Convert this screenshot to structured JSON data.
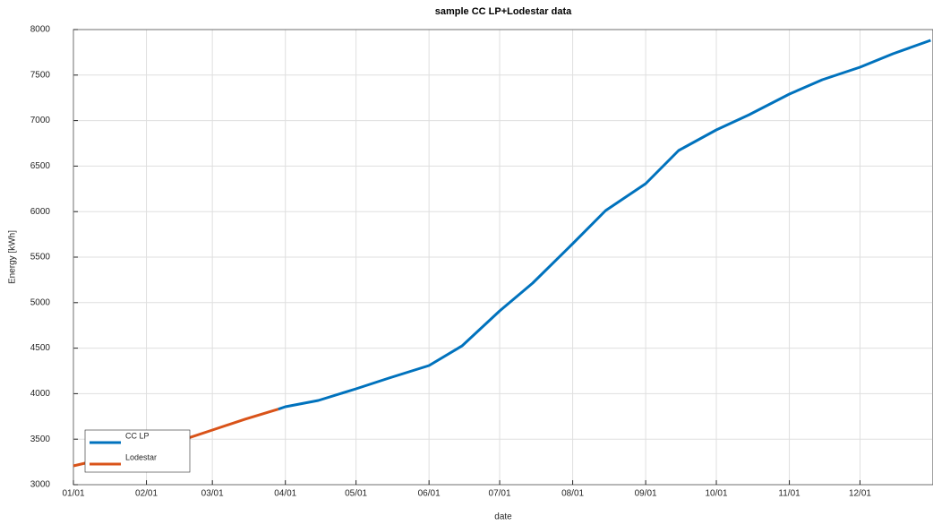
{
  "chart_data": {
    "type": "line",
    "title": "sample CC LP+Lodestar data",
    "x_label": "date",
    "y_label": "Energy [kWh]",
    "x": [
      "01/01",
      "01/15",
      "02/01",
      "02/15",
      "03/01",
      "03/15",
      "03/29",
      "04/01",
      "04/15",
      "05/01",
      "05/15",
      "06/01",
      "06/15",
      "07/01",
      "07/15",
      "08/01",
      "08/15",
      "09/01",
      "09/15",
      "10/01",
      "10/15",
      "11/01",
      "11/15",
      "12/01",
      "12/15",
      "12/31"
    ],
    "series": [
      {
        "name": "CC LP",
        "color": "#0072bd",
        "values": [
          null,
          null,
          null,
          null,
          null,
          null,
          3830,
          3856,
          3925,
          4053,
          4171,
          4309,
          4525,
          4909,
          5215,
          5648,
          6012,
          6307,
          6671,
          6898,
          7065,
          7291,
          7449,
          7587,
          7734,
          7882
        ]
      },
      {
        "name": "Lodestar",
        "color": "#d95319",
        "values": [
          3207,
          3290,
          3380,
          3480,
          3600,
          3720,
          3830,
          null,
          null,
          null,
          null,
          null,
          null,
          null,
          null,
          null,
          null,
          null,
          null,
          null,
          null,
          null,
          null,
          null,
          null,
          null
        ]
      }
    ],
    "xlim": [
      "01/01",
      "12/31"
    ],
    "xticks": [
      "01/01",
      "02/01",
      "03/01",
      "04/01",
      "05/01",
      "06/01",
      "07/01",
      "08/01",
      "09/01",
      "10/01",
      "11/01",
      "12/01"
    ],
    "ylim": [
      3000,
      8000
    ],
    "yticks": [
      3000,
      3500,
      4000,
      4500,
      5000,
      5500,
      6000,
      6500,
      7000,
      7500,
      8000
    ],
    "grid": true,
    "legend": "lower left"
  }
}
